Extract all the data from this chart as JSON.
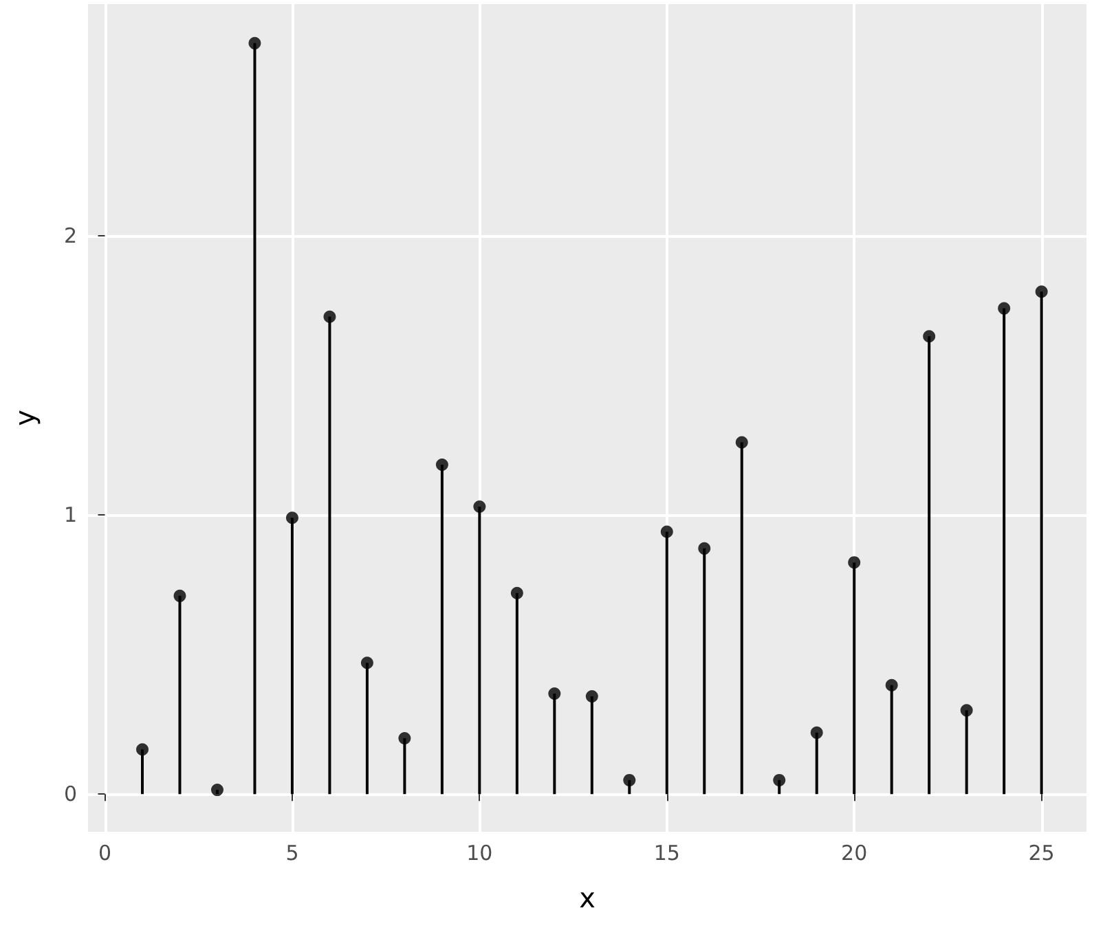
{
  "chart_data": {
    "type": "lollipop",
    "xlabel": "x",
    "ylabel": "y",
    "x": [
      1,
      2,
      3,
      4,
      5,
      6,
      7,
      8,
      9,
      10,
      11,
      12,
      13,
      14,
      15,
      16,
      17,
      18,
      19,
      20,
      21,
      22,
      23,
      24,
      25
    ],
    "values": [
      0.16,
      0.71,
      0.015,
      2.69,
      0.99,
      1.71,
      0.47,
      0.2,
      1.18,
      1.03,
      0.72,
      0.36,
      0.35,
      0.05,
      0.94,
      0.88,
      1.26,
      0.05,
      0.22,
      0.83,
      0.39,
      1.64,
      0.3,
      1.74,
      1.8
    ],
    "color": "#000000",
    "marker": "circle",
    "xlim": [
      -0.45,
      26.2
    ],
    "xticks": [
      0,
      5,
      10,
      15,
      20,
      25
    ],
    "ylim": [
      -0.135,
      2.83
    ],
    "yticks": [
      0,
      1,
      2
    ],
    "grid": true
  }
}
